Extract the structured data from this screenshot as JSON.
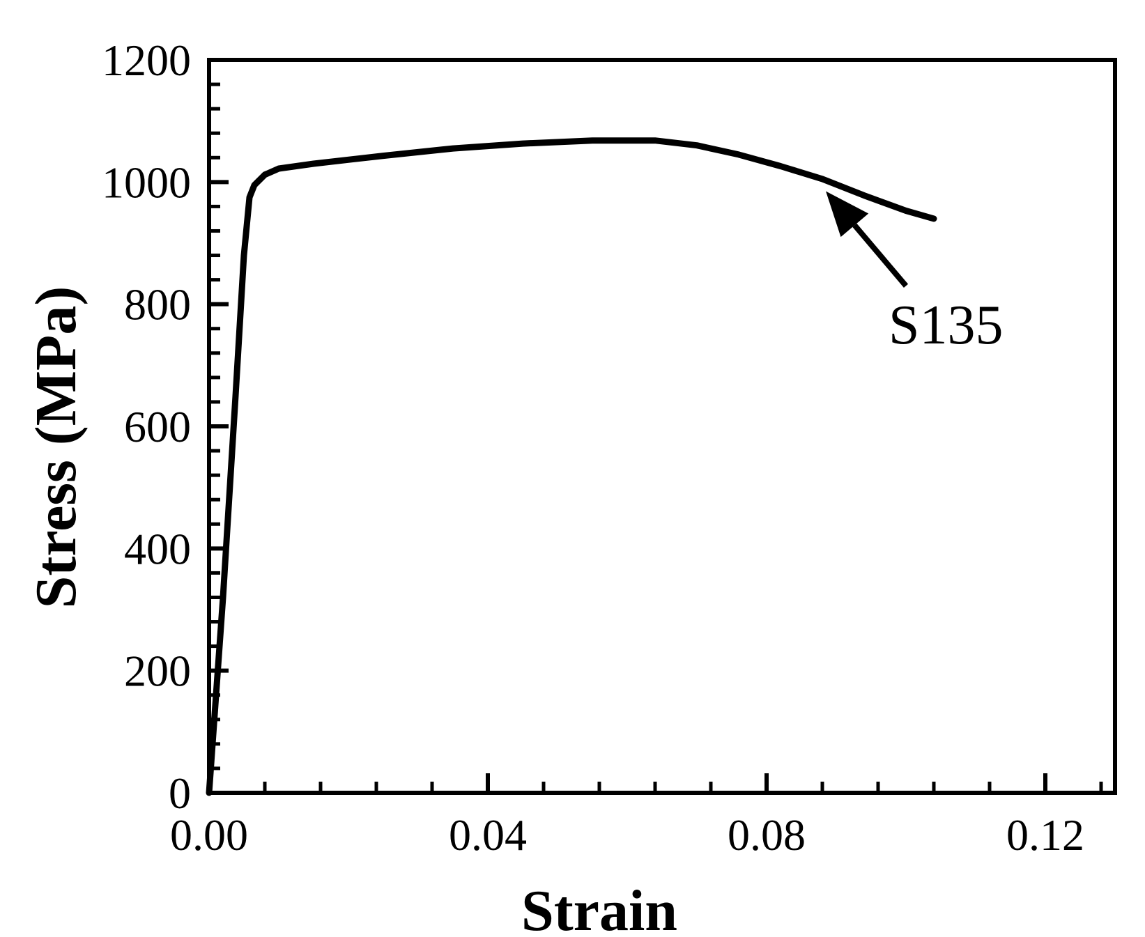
{
  "chart_data": {
    "type": "line",
    "title": "",
    "xlabel": "Strain",
    "ylabel": "Stress (MPa)",
    "xlim": [
      0,
      0.13
    ],
    "ylim": [
      0,
      1200
    ],
    "x_ticks": [
      0.0,
      0.04,
      0.08,
      0.12
    ],
    "x_tick_labels": [
      "0.00",
      "0.04",
      "0.08",
      "0.12"
    ],
    "y_ticks": [
      0,
      200,
      400,
      600,
      800,
      1000,
      1200
    ],
    "y_tick_labels": [
      "0",
      "200",
      "400",
      "600",
      "800",
      "1000",
      "1200"
    ],
    "x_minor_step": 0.008,
    "y_minor_step": 40,
    "grid": false,
    "legend": "none",
    "series": [
      {
        "name": "S135",
        "color": "#000000",
        "points": [
          [
            0.0,
            0
          ],
          [
            0.002,
            320
          ],
          [
            0.0038,
            650
          ],
          [
            0.005,
            880
          ],
          [
            0.0058,
            975
          ],
          [
            0.0065,
            995
          ],
          [
            0.008,
            1012
          ],
          [
            0.01,
            1022
          ],
          [
            0.015,
            1030
          ],
          [
            0.025,
            1043
          ],
          [
            0.035,
            1055
          ],
          [
            0.045,
            1063
          ],
          [
            0.055,
            1068
          ],
          [
            0.064,
            1068
          ],
          [
            0.07,
            1060
          ],
          [
            0.076,
            1045
          ],
          [
            0.082,
            1026
          ],
          [
            0.088,
            1005
          ],
          [
            0.094,
            978
          ],
          [
            0.1,
            953
          ],
          [
            0.104,
            940
          ]
        ]
      }
    ],
    "annotations": [
      {
        "text": "S135",
        "text_at": [
          0.1035,
          770
        ],
        "arrow_from": [
          0.1,
          830
        ],
        "arrow_to": [
          0.0885,
          985
        ]
      }
    ]
  }
}
